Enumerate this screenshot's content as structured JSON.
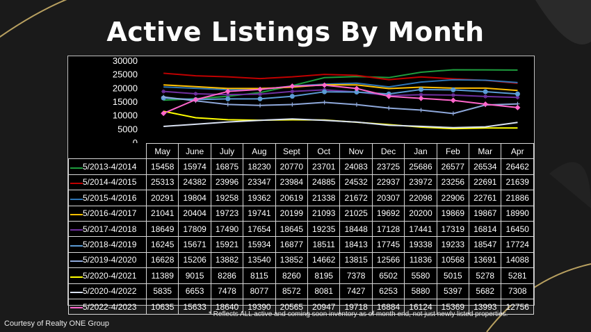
{
  "title": "Active Listings By Month",
  "footnote": "* Reflects ALL active and coming soon inventory as of month end, not just newly listed properties.",
  "credit": "Courtesy of Realty ONE Group",
  "chart_data": {
    "type": "line",
    "title": "Active Listings By Month",
    "categories": [
      "May",
      "June",
      "July",
      "Aug",
      "Sept",
      "Oct",
      "Nov",
      "Dec",
      "Jan",
      "Feb",
      "Mar",
      "Apr"
    ],
    "ylim": [
      0,
      30000
    ],
    "yticks": [
      0,
      5000,
      10000,
      15000,
      20000,
      25000,
      30000
    ],
    "grid": false,
    "legend": "table-below",
    "series": [
      {
        "name": "5/2013-4/2014",
        "color": "#1e9e3e",
        "marker": "none",
        "values": [
          15458,
          15974,
          16875,
          18230,
          20770,
          23701,
          24083,
          23725,
          25686,
          26577,
          26534,
          26462
        ]
      },
      {
        "name": "5/2014-4/2015",
        "color": "#c00000",
        "marker": "none",
        "values": [
          25313,
          24382,
          23996,
          23347,
          23984,
          24885,
          24532,
          22937,
          23972,
          23256,
          22691,
          21639
        ]
      },
      {
        "name": "5/2015-4/2016",
        "color": "#2e75b6",
        "marker": "none",
        "values": [
          20291,
          19804,
          19258,
          19362,
          20619,
          21338,
          21672,
          20307,
          22098,
          22906,
          22761,
          21886
        ]
      },
      {
        "name": "5/2016-4/2017",
        "color": "#ffc000",
        "marker": "none",
        "values": [
          21041,
          20404,
          19723,
          19741,
          20199,
          21093,
          21025,
          19692,
          20200,
          19869,
          19867,
          18990
        ]
      },
      {
        "name": "5/2017-4/2018",
        "color": "#7030a0",
        "marker": "star",
        "values": [
          18649,
          17809,
          17490,
          17654,
          18645,
          19235,
          18448,
          17128,
          17441,
          17319,
          16814,
          16450
        ]
      },
      {
        "name": "5/2018-4/2019",
        "color": "#5b9bd5",
        "marker": "circle",
        "values": [
          16245,
          15671,
          15921,
          15934,
          16877,
          18511,
          18413,
          17745,
          19338,
          19233,
          18547,
          17724
        ]
      },
      {
        "name": "5/2019-4/2020",
        "color": "#8fa9dc",
        "marker": "plus",
        "values": [
          16628,
          15206,
          13882,
          13540,
          13852,
          14662,
          13815,
          12566,
          11836,
          10568,
          13691,
          14088
        ]
      },
      {
        "name": "5/2020-4/2021",
        "color": "#ffff00",
        "marker": "none",
        "values": [
          11389,
          9015,
          8286,
          8115,
          8260,
          8195,
          7378,
          6502,
          5580,
          5015,
          5278,
          5281
        ]
      },
      {
        "name": "5/2020-4/2022",
        "color": "#d9e1f2",
        "marker": "none",
        "values": [
          5835,
          6653,
          7478,
          8077,
          8572,
          8081,
          7427,
          6253,
          5880,
          5397,
          5682,
          7308
        ]
      },
      {
        "name": "5/2022-4/2023",
        "color": "#ff66cc",
        "marker": "diamond",
        "values": [
          10635,
          15633,
          18640,
          19390,
          20565,
          20947,
          19718,
          16884,
          16124,
          15369,
          13993,
          12756
        ]
      }
    ]
  }
}
